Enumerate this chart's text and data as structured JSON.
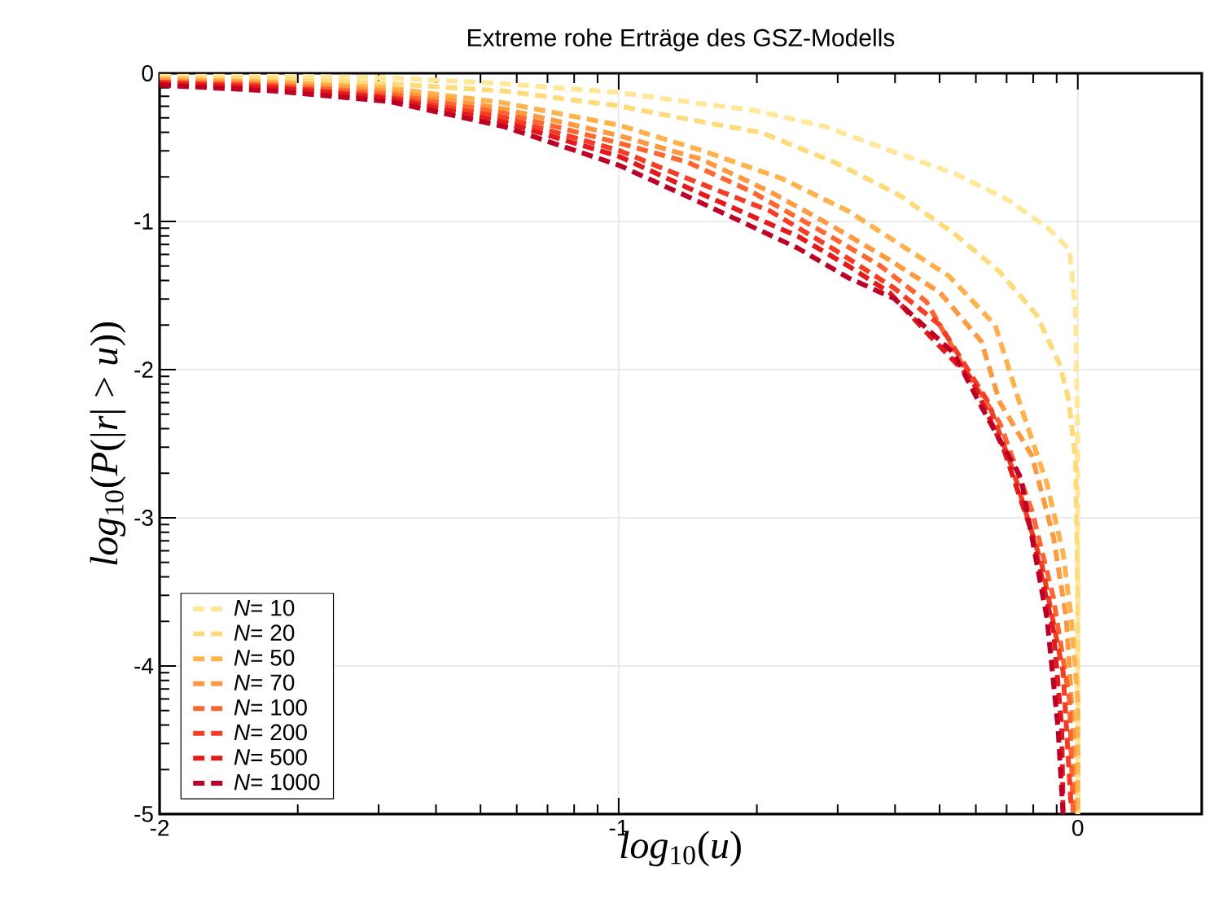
{
  "chart_data": {
    "type": "line",
    "title": "Extreme rohe Erträge des GSZ-Modells",
    "xlabel": "*log*$_{10}$(*u*)",
    "ylabel": "*log*$_{10}$(*P*(|*r*| > *u*))",
    "xlim": [
      -2,
      0.27
    ],
    "ylim": [
      -5,
      0
    ],
    "xticks": [
      -2,
      {
        "value": -1.699,
        "label": null
      },
      {
        "value": -1.523,
        "label": null
      },
      {
        "value": -1.398,
        "label": null
      },
      {
        "value": -1.301,
        "label": null
      },
      {
        "value": -1.222,
        "label": null
      },
      {
        "value": -1.155,
        "label": null
      },
      {
        "value": -1.097,
        "label": null
      },
      {
        "value": -1.046,
        "label": null
      },
      -1,
      {
        "value": -0.699,
        "label": null
      },
      {
        "value": -0.523,
        "label": null
      },
      {
        "value": -0.398,
        "label": null
      },
      {
        "value": -0.301,
        "label": null
      },
      {
        "value": -0.222,
        "label": null
      },
      {
        "value": -0.155,
        "label": null
      },
      {
        "value": -0.097,
        "label": null
      },
      {
        "value": -0.046,
        "label": null
      },
      0
    ],
    "yticks": [
      -5,
      {
        "value": -4.699,
        "label": null
      },
      {
        "value": -4.523,
        "label": null
      },
      {
        "value": -4.398,
        "label": null
      },
      {
        "value": -4.301,
        "label": null
      },
      {
        "value": -4.222,
        "label": null
      },
      {
        "value": -4.155,
        "label": null
      },
      {
        "value": -4.097,
        "label": null
      },
      {
        "value": -4.046,
        "label": null
      },
      -4,
      {
        "value": -3.699,
        "label": null
      },
      {
        "value": -3.523,
        "label": null
      },
      {
        "value": -3.398,
        "label": null
      },
      {
        "value": -3.301,
        "label": null
      },
      {
        "value": -3.222,
        "label": null
      },
      {
        "value": -3.155,
        "label": null
      },
      {
        "value": -3.097,
        "label": null
      },
      {
        "value": -3.046,
        "label": null
      },
      -3,
      {
        "value": -2.699,
        "label": null
      },
      {
        "value": -2.523,
        "label": null
      },
      {
        "value": -2.398,
        "label": null
      },
      {
        "value": -2.301,
        "label": null
      },
      {
        "value": -2.222,
        "label": null
      },
      {
        "value": -2.155,
        "label": null
      },
      {
        "value": -2.097,
        "label": null
      },
      {
        "value": -2.046,
        "label": null
      },
      -2,
      {
        "value": -1.699,
        "label": null
      },
      {
        "value": -1.523,
        "label": null
      },
      {
        "value": -1.398,
        "label": null
      },
      {
        "value": -1.301,
        "label": null
      },
      {
        "value": -1.222,
        "label": null
      },
      {
        "value": -1.155,
        "label": null
      },
      {
        "value": -1.097,
        "label": null
      },
      {
        "value": -1.046,
        "label": null
      },
      -1,
      {
        "value": -0.699,
        "label": null
      },
      {
        "value": -0.523,
        "label": null
      },
      {
        "value": -0.398,
        "label": null
      },
      {
        "value": -0.301,
        "label": null
      },
      {
        "value": -0.222,
        "label": null
      },
      {
        "value": -0.155,
        "label": null
      },
      {
        "value": -0.097,
        "label": null
      },
      {
        "value": -0.046,
        "label": null
      },
      0
    ],
    "grid": true,
    "legend": "bottom left",
    "marker": "none",
    "line_style": "dashed",
    "series": [
      {
        "name": "*N*= 10",
        "color": "#ffe79a",
        "x": [
          -2,
          -1.75,
          -1.5,
          -1.25,
          -1,
          -0.858,
          -0.706,
          -0.55,
          -0.41,
          -0.266,
          -0.149,
          -0.067,
          -0.018,
          -0.005,
          0,
          0
        ],
        "values": [
          -0.02,
          -0.02,
          -0.03,
          -0.07,
          -0.13,
          -0.19,
          -0.25,
          -0.36,
          -0.52,
          -0.68,
          -0.86,
          -1.04,
          -1.19,
          -1.6,
          -2.5,
          -5
        ]
      },
      {
        "name": "*N*= 20",
        "color": "#fedb7a",
        "x": [
          -2,
          -1.75,
          -1.5,
          -1.25,
          -1,
          -0.85,
          -0.69,
          -0.53,
          -0.39,
          -0.27,
          -0.17,
          -0.09,
          -0.04,
          -0.02,
          -0.005,
          0,
          0
        ],
        "values": [
          -0.03,
          -0.04,
          -0.07,
          -0.12,
          -0.22,
          -0.31,
          -0.4,
          -0.6,
          -0.82,
          -1.08,
          -1.34,
          -1.63,
          -1.96,
          -2.2,
          -2.6,
          -3.5,
          -5
        ]
      },
      {
        "name": "*N*= 50",
        "color": "#feb24c",
        "x": [
          -2,
          -1.75,
          -1.5,
          -1.25,
          -1,
          -0.82,
          -0.645,
          -0.5,
          -0.39,
          -0.28,
          -0.18,
          -0.124,
          -0.067,
          -0.032,
          -0.014,
          0,
          0
        ],
        "values": [
          -0.04,
          -0.06,
          -0.1,
          -0.2,
          -0.35,
          -0.52,
          -0.71,
          -0.93,
          -1.15,
          -1.37,
          -1.7,
          -2.25,
          -2.77,
          -3.24,
          -3.68,
          -4.23,
          -5
        ]
      },
      {
        "name": "*N*= 70",
        "color": "#fd9a41",
        "x": [
          -2,
          -1.75,
          -1.5,
          -1.25,
          -1,
          -0.82,
          -0.67,
          -0.53,
          -0.41,
          -0.3,
          -0.21,
          -0.17,
          -0.1,
          -0.053,
          -0.025,
          -0.01,
          -0.007
        ],
        "values": [
          -0.05,
          -0.07,
          -0.12,
          -0.24,
          -0.42,
          -0.58,
          -0.8,
          -1.04,
          -1.26,
          -1.48,
          -1.81,
          -2.22,
          -2.58,
          -3.13,
          -3.68,
          -4.42,
          -5
        ]
      },
      {
        "name": "*N*= 100",
        "color": "#fd6631",
        "x": [
          -2,
          -1.75,
          -1.5,
          -1.25,
          -1,
          -0.85,
          -0.71,
          -0.55,
          -0.43,
          -0.33,
          -0.245,
          -0.17,
          -0.1,
          -0.053,
          -0.018,
          -0.01
        ],
        "values": [
          -0.06,
          -0.08,
          -0.14,
          -0.27,
          -0.47,
          -0.6,
          -0.8,
          -1.08,
          -1.3,
          -1.54,
          -2.0,
          -2.36,
          -2.95,
          -3.54,
          -4.23,
          -5
        ]
      },
      {
        "name": "*N*= 200",
        "color": "#f43d25",
        "x": [
          -2,
          -1.75,
          -1.5,
          -1.25,
          -1,
          -0.85,
          -0.67,
          -0.53,
          -0.4,
          -0.3,
          -0.195,
          -0.14,
          -0.078,
          -0.032,
          -0.014
        ],
        "values": [
          -0.06,
          -0.09,
          -0.16,
          -0.3,
          -0.52,
          -0.71,
          -0.93,
          -1.19,
          -1.45,
          -1.7,
          -2.22,
          -2.69,
          -3.32,
          -4.04,
          -4.97
        ]
      },
      {
        "name": "*N*= 500",
        "color": "#e31a1c",
        "x": [
          -2,
          -1.75,
          -1.5,
          -1.25,
          -1,
          -0.83,
          -0.72,
          -0.61,
          -0.5,
          -0.41,
          -0.32,
          -0.23,
          -0.16,
          -0.1,
          -0.053,
          -0.035,
          -0.032
        ],
        "values": [
          -0.07,
          -0.1,
          -0.17,
          -0.33,
          -0.56,
          -0.8,
          -0.95,
          -1.1,
          -1.3,
          -1.48,
          -1.78,
          -2.07,
          -2.55,
          -3.1,
          -3.76,
          -4.42,
          -5
        ]
      },
      {
        "name": "*N*= 1000",
        "color": "#bd0026",
        "x": [
          -2,
          -1.75,
          -1.5,
          -1.25,
          -1,
          -0.83,
          -0.72,
          -0.61,
          -0.5,
          -0.4,
          -0.27,
          -0.21,
          -0.124,
          -0.067,
          -0.043,
          -0.032
        ],
        "values": [
          -0.08,
          -0.12,
          -0.19,
          -0.36,
          -0.62,
          -0.86,
          -1.02,
          -1.18,
          -1.38,
          -1.52,
          -1.89,
          -2.25,
          -2.73,
          -3.68,
          -4.42,
          -5
        ]
      }
    ]
  }
}
